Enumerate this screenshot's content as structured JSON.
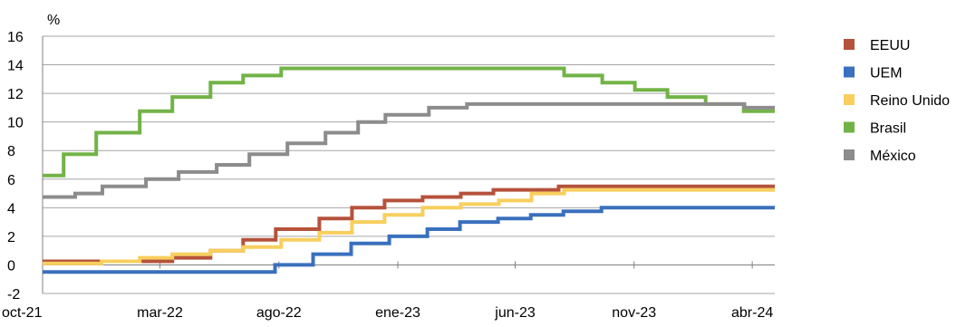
{
  "chart_data": {
    "type": "line",
    "ylabel": "%",
    "ylim": [
      -2,
      16
    ],
    "yticks": [
      -2,
      0,
      2,
      4,
      6,
      8,
      10,
      12,
      14,
      16
    ],
    "xlim": [
      "2021-10-01",
      "2024-04-30"
    ],
    "xticks": [
      {
        "label": "oct-21",
        "date": "2021-10-01"
      },
      {
        "label": "mar-22",
        "date": "2022-03-01"
      },
      {
        "label": "ago-22",
        "date": "2022-08-01"
      },
      {
        "label": "ene-23",
        "date": "2023-01-01"
      },
      {
        "label": "jun-23",
        "date": "2023-06-01"
      },
      {
        "label": "nov-23",
        "date": "2023-11-01"
      },
      {
        "label": "abr-24",
        "date": "2024-04-01"
      }
    ],
    "grid": "horizontal",
    "legend_position": "right",
    "series": [
      {
        "name": "EEUU",
        "color": "#b5523b",
        "steps": [
          [
            "2021-10-01",
            0.25
          ],
          [
            "2022-03-17",
            0.5
          ],
          [
            "2022-05-05",
            1.0
          ],
          [
            "2022-06-16",
            1.75
          ],
          [
            "2022-07-28",
            2.5
          ],
          [
            "2022-09-22",
            3.25
          ],
          [
            "2022-11-03",
            4.0
          ],
          [
            "2022-12-15",
            4.5
          ],
          [
            "2023-02-02",
            4.75
          ],
          [
            "2023-03-23",
            5.0
          ],
          [
            "2023-05-04",
            5.25
          ],
          [
            "2023-07-27",
            5.5
          ],
          [
            "2024-04-30",
            5.5
          ]
        ]
      },
      {
        "name": "UEM",
        "color": "#3a70bd",
        "steps": [
          [
            "2021-10-01",
            -0.5
          ],
          [
            "2022-07-27",
            0.0
          ],
          [
            "2022-09-14",
            0.75
          ],
          [
            "2022-11-02",
            1.5
          ],
          [
            "2022-12-21",
            2.0
          ],
          [
            "2023-02-08",
            2.5
          ],
          [
            "2023-03-22",
            3.0
          ],
          [
            "2023-05-10",
            3.25
          ],
          [
            "2023-06-21",
            3.5
          ],
          [
            "2023-08-02",
            3.75
          ],
          [
            "2023-09-20",
            4.0
          ],
          [
            "2024-04-30",
            4.0
          ]
        ]
      },
      {
        "name": "Reino Unido",
        "color": "#f8cf5e",
        "steps": [
          [
            "2021-10-01",
            0.1
          ],
          [
            "2021-12-16",
            0.25
          ],
          [
            "2022-02-03",
            0.5
          ],
          [
            "2022-03-17",
            0.75
          ],
          [
            "2022-05-05",
            1.0
          ],
          [
            "2022-06-16",
            1.25
          ],
          [
            "2022-08-04",
            1.75
          ],
          [
            "2022-09-22",
            2.25
          ],
          [
            "2022-11-03",
            3.0
          ],
          [
            "2022-12-15",
            3.5
          ],
          [
            "2023-02-02",
            4.0
          ],
          [
            "2023-03-23",
            4.25
          ],
          [
            "2023-05-11",
            4.5
          ],
          [
            "2023-06-22",
            5.0
          ],
          [
            "2023-08-03",
            5.25
          ],
          [
            "2024-04-30",
            5.25
          ]
        ]
      },
      {
        "name": "Brasil",
        "color": "#72b347",
        "steps": [
          [
            "2021-10-01",
            6.25
          ],
          [
            "2021-10-28",
            7.75
          ],
          [
            "2021-12-09",
            9.25
          ],
          [
            "2022-02-03",
            10.75
          ],
          [
            "2022-03-17",
            11.75
          ],
          [
            "2022-05-05",
            12.75
          ],
          [
            "2022-06-16",
            13.25
          ],
          [
            "2022-08-04",
            13.75
          ],
          [
            "2023-08-03",
            13.25
          ],
          [
            "2023-09-21",
            12.75
          ],
          [
            "2023-11-02",
            12.25
          ],
          [
            "2023-12-14",
            11.75
          ],
          [
            "2024-02-01",
            11.25
          ],
          [
            "2024-03-21",
            10.75
          ],
          [
            "2024-04-30",
            10.75
          ]
        ]
      },
      {
        "name": "México",
        "color": "#8c8c8c",
        "steps": [
          [
            "2021-10-01",
            4.75
          ],
          [
            "2021-11-12",
            5.0
          ],
          [
            "2021-12-17",
            5.5
          ],
          [
            "2022-02-11",
            6.0
          ],
          [
            "2022-03-25",
            6.5
          ],
          [
            "2022-05-13",
            7.0
          ],
          [
            "2022-06-24",
            7.75
          ],
          [
            "2022-08-12",
            8.5
          ],
          [
            "2022-09-30",
            9.25
          ],
          [
            "2022-11-11",
            10.0
          ],
          [
            "2022-12-16",
            10.5
          ],
          [
            "2023-02-10",
            11.0
          ],
          [
            "2023-03-31",
            11.25
          ],
          [
            "2024-03-22",
            11.0
          ],
          [
            "2024-04-30",
            11.0
          ]
        ]
      }
    ]
  }
}
